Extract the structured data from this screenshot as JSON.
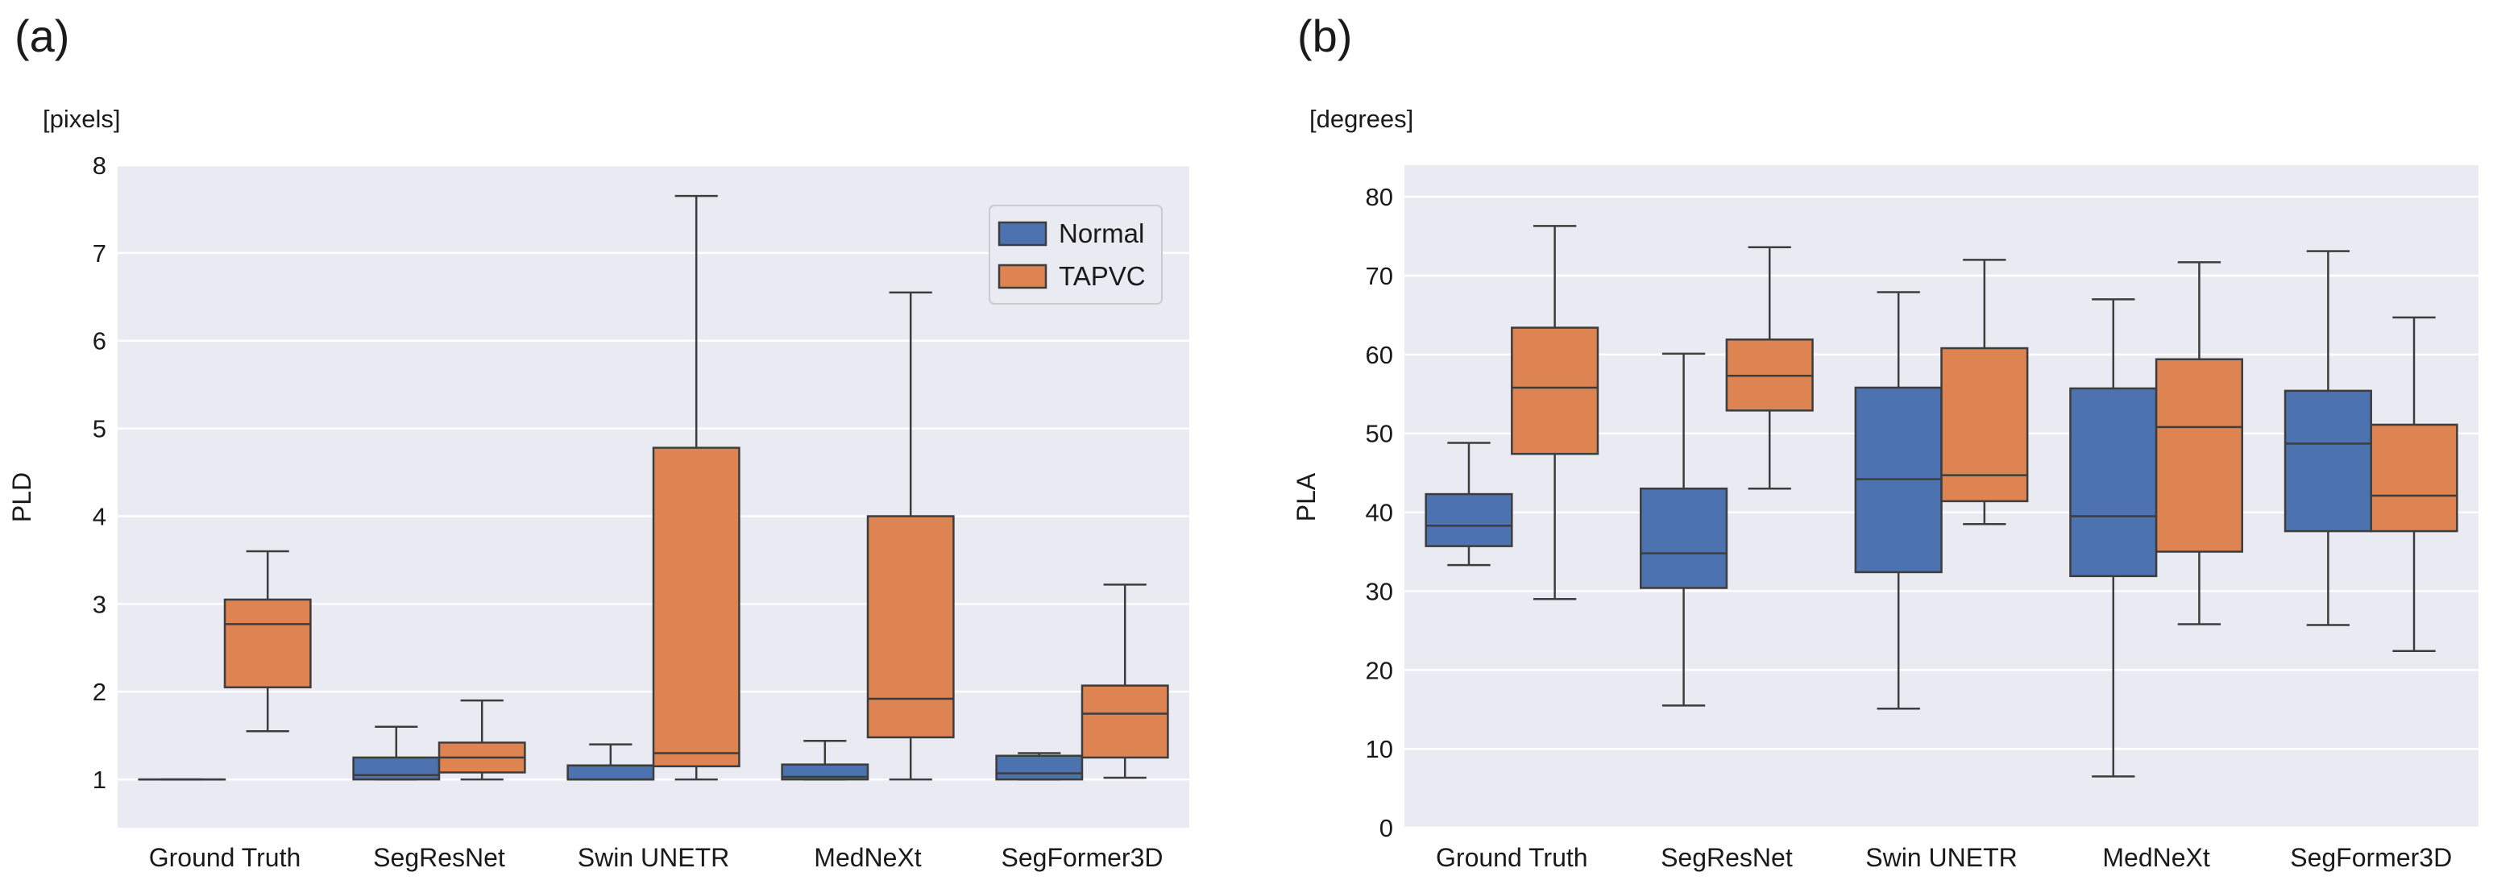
{
  "chart_data": [
    {
      "panel_label": "(a)",
      "type": "boxplot",
      "unit_label": "[pixels]",
      "ylabel": "PLD",
      "xlabel": "",
      "ylim": [
        0.45,
        8.0
      ],
      "yticks": [
        1,
        2,
        3,
        4,
        5,
        6,
        7,
        8
      ],
      "grid": true,
      "legend_position": "top-right",
      "categories": [
        "Ground Truth",
        "SegResNet",
        "Swin UNETR",
        "MedNeXt",
        "SegFormer3D"
      ],
      "series": [
        {
          "name": "Normal",
          "color": "#4c72b0",
          "boxes": [
            {
              "whislo": 1.0,
              "q1": 1.0,
              "med": 1.0,
              "q3": 1.0,
              "whishi": 1.0
            },
            {
              "whislo": 1.0,
              "q1": 1.0,
              "med": 1.05,
              "q3": 1.25,
              "whishi": 1.6
            },
            {
              "whislo": 1.0,
              "q1": 1.0,
              "med": 1.0,
              "q3": 1.16,
              "whishi": 1.4
            },
            {
              "whislo": 1.0,
              "q1": 1.0,
              "med": 1.03,
              "q3": 1.17,
              "whishi": 1.44
            },
            {
              "whislo": 1.0,
              "q1": 1.0,
              "med": 1.07,
              "q3": 1.27,
              "whishi": 1.3
            }
          ]
        },
        {
          "name": "TAPVC",
          "color": "#dd8452",
          "boxes": [
            {
              "whislo": 1.55,
              "q1": 2.05,
              "med": 2.77,
              "q3": 3.05,
              "whishi": 3.6
            },
            {
              "whislo": 1.0,
              "q1": 1.08,
              "med": 1.25,
              "q3": 1.42,
              "whishi": 1.9
            },
            {
              "whislo": 1.0,
              "q1": 1.15,
              "med": 1.3,
              "q3": 4.78,
              "whishi": 7.65
            },
            {
              "whislo": 1.0,
              "q1": 1.48,
              "med": 1.92,
              "q3": 4.0,
              "whishi": 6.55
            },
            {
              "whislo": 1.02,
              "q1": 1.25,
              "med": 1.75,
              "q3": 2.07,
              "whishi": 3.22
            }
          ]
        }
      ]
    },
    {
      "panel_label": "(b)",
      "type": "boxplot",
      "unit_label": "[degrees]",
      "ylabel": "PLA",
      "xlabel": "",
      "ylim": [
        0,
        84
      ],
      "yticks": [
        0,
        10,
        20,
        30,
        40,
        50,
        60,
        70,
        80
      ],
      "grid": true,
      "legend_position": "none",
      "categories": [
        "Ground Truth",
        "SegResNet",
        "Swin UNETR",
        "MedNeXt",
        "SegFormer3D"
      ],
      "series": [
        {
          "name": "Normal",
          "color": "#4c72b0",
          "boxes": [
            {
              "whislo": 33.3,
              "q1": 35.7,
              "med": 38.3,
              "q3": 42.3,
              "whishi": 48.8
            },
            {
              "whislo": 15.5,
              "q1": 30.4,
              "med": 34.8,
              "q3": 43.0,
              "whishi": 60.1
            },
            {
              "whislo": 15.1,
              "q1": 32.4,
              "med": 44.2,
              "q3": 55.8,
              "whishi": 67.9
            },
            {
              "whislo": 6.5,
              "q1": 31.9,
              "med": 39.5,
              "q3": 55.7,
              "whishi": 67.0
            },
            {
              "whislo": 25.7,
              "q1": 37.6,
              "med": 48.7,
              "q3": 55.4,
              "whishi": 73.1
            }
          ]
        },
        {
          "name": "TAPVC",
          "color": "#dd8452",
          "boxes": [
            {
              "whislo": 29.0,
              "q1": 47.4,
              "med": 55.8,
              "q3": 63.4,
              "whishi": 76.3
            },
            {
              "whislo": 43.0,
              "q1": 52.9,
              "med": 57.3,
              "q3": 61.9,
              "whishi": 73.6
            },
            {
              "whislo": 38.5,
              "q1": 41.4,
              "med": 44.7,
              "q3": 60.8,
              "whishi": 72.0
            },
            {
              "whislo": 25.8,
              "q1": 35.0,
              "med": 50.8,
              "q3": 59.4,
              "whishi": 71.7
            },
            {
              "whislo": 22.4,
              "q1": 37.6,
              "med": 42.1,
              "q3": 51.1,
              "whishi": 64.7
            }
          ]
        }
      ]
    }
  ]
}
